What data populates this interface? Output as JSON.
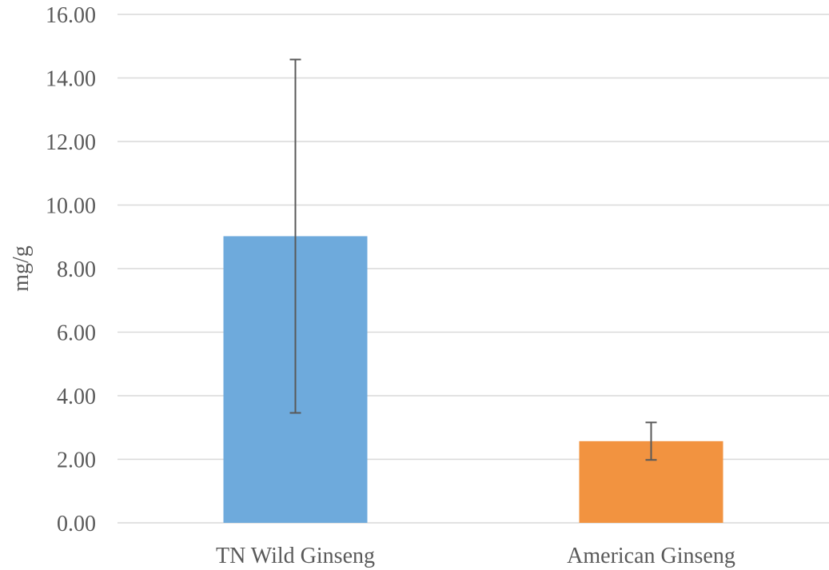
{
  "chart_data": {
    "type": "bar",
    "title": "",
    "xlabel": "",
    "ylabel": "mg/g",
    "ylim": [
      0,
      16
    ],
    "ytick_step": 2,
    "ytick_decimals": 2,
    "grid": true,
    "legend": "none",
    "categories": [
      "TN Wild Ginseng",
      "American Ginseng"
    ],
    "values": [
      9.02,
      2.57
    ],
    "error_upper": [
      14.58,
      3.16
    ],
    "error_lower": [
      3.46,
      1.98
    ],
    "colors": [
      "#6eaadc",
      "#f29340"
    ],
    "error_color": "#595959",
    "grid_color": "#d9d9d9",
    "text_color": "#595959"
  }
}
